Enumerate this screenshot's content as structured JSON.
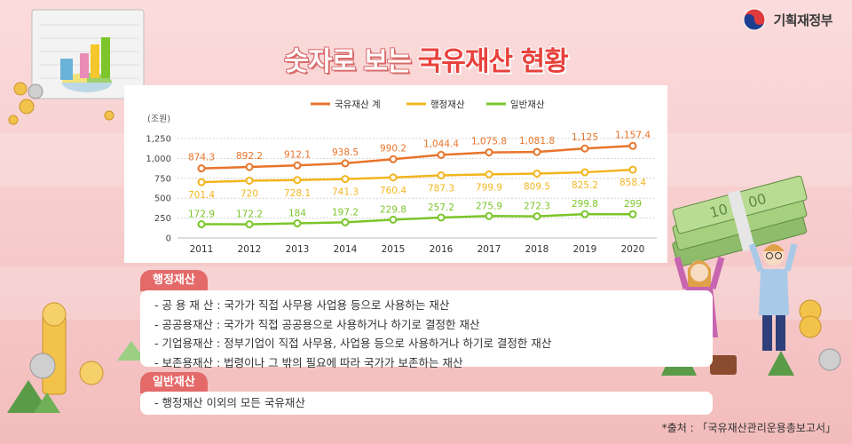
{
  "header": {
    "ministry": "기획재정부",
    "title_part1": "숫자로 보는",
    "title_part2": "국유재산 현황"
  },
  "chart_data": {
    "type": "line",
    "yunit": "(조원)",
    "x": [
      "2011",
      "2012",
      "2013",
      "2014",
      "2015",
      "2016",
      "2017",
      "2018",
      "2019",
      "2020"
    ],
    "yticks": [
      "1,250",
      "1,000",
      "750",
      "500",
      "250",
      "0"
    ],
    "ylim": [
      0,
      1250
    ],
    "grid": true,
    "legend_position": "top",
    "series": [
      {
        "name": "국유재산 계",
        "color": "#e8742a",
        "values": [
          874.3,
          892.2,
          912.1,
          938.5,
          990.2,
          1044.4,
          1075.8,
          1081.8,
          1125,
          1157.4
        ],
        "labels": [
          "874.3",
          "892.2",
          "912.1",
          "938.5",
          "990.2",
          "1,044.4",
          "1,075.8",
          "1,081.8",
          "1,125",
          "1,157.4"
        ]
      },
      {
        "name": "행정재산",
        "color": "#f2b51f",
        "values": [
          701.4,
          720,
          728.1,
          741.3,
          760.4,
          787.3,
          799.9,
          809.5,
          825.2,
          858.4
        ],
        "labels": [
          "701.4",
          "720",
          "728.1",
          "741.3",
          "760.4",
          "787.3",
          "799.9",
          "809.5",
          "825.2",
          "858.4"
        ]
      },
      {
        "name": "일반재산",
        "color": "#7cc52a",
        "values": [
          172.9,
          172.2,
          184,
          197.2,
          229.8,
          257.2,
          275.9,
          272.3,
          299.8,
          299
        ],
        "labels": [
          "172.9",
          "172.2",
          "184",
          "197.2",
          "229.8",
          "257.2",
          "275.9",
          "272.3",
          "299.8",
          "299"
        ]
      }
    ]
  },
  "admin_property": {
    "tag": "행정재산",
    "items": [
      "- 공 용 재 산 : 국가가 직접 사무용 사업용 등으로 사용하는 재산",
      "- 공공용재산 : 국가가 직접 공공용으로 사용하거나 하기로 결정한 재산",
      "- 기업용재산 : 정부기업이 직접 사무용, 사업용 등으로 사용하거나 하기로 결정한 재산",
      "- 보존용재산 : 법령이나 그 밖의 필요에 따라 국가가 보존하는 재산"
    ]
  },
  "general_property": {
    "tag": "일반재산",
    "items": [
      "- 행정재산 이외의 모든 국유재산"
    ]
  },
  "source": "*출처 : 「국유재산관리운용총보고서」",
  "colors": {
    "accent": "#e46a6a",
    "background": "#f6c9c9"
  }
}
